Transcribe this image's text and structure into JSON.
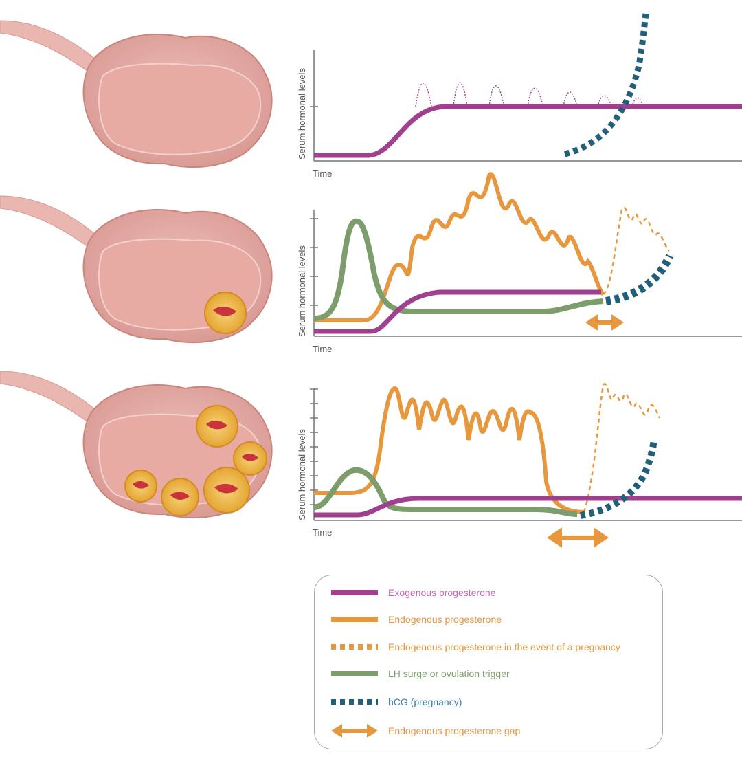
{
  "colors": {
    "exogenous": "#a0408f",
    "endogenous": "#e7983f",
    "lh": "#7d9e6c",
    "hcg": "#21607a",
    "gap": "#e7983f",
    "axis": "#777777",
    "ovary_fill": "#e9b3ad",
    "ovary_inner": "#e2a59f",
    "ovary_edge": "#c9857e",
    "follicle": "#f0b63c",
    "follicle_core": "#c9333b"
  },
  "panels": [
    {
      "ylabel": "Serum hormonal levels",
      "xlabel": "Time",
      "ovary_follicles": 0,
      "chart_data": {
        "type": "line",
        "series": [
          {
            "name": "Exogenous progesterone",
            "key": "exogenous"
          },
          {
            "name": "hCG (pregnancy)",
            "key": "hcg"
          }
        ]
      }
    },
    {
      "ylabel": "Serum hormonal levels",
      "xlabel": "Time",
      "ovary_follicles": 1,
      "chart_data": {
        "type": "line",
        "series": [
          {
            "name": "Exogenous progesterone",
            "key": "exogenous"
          },
          {
            "name": "Endogenous progesterone",
            "key": "endogenous"
          },
          {
            "name": "Endogenous progesterone in the event of a pregnancy",
            "key": "endogenous_pregnancy"
          },
          {
            "name": "LH surge or ovulation trigger",
            "key": "lh"
          },
          {
            "name": "hCG (pregnancy)",
            "key": "hcg"
          },
          {
            "name": "Endogenous progesterone gap",
            "key": "gap"
          }
        ]
      }
    },
    {
      "ylabel": "Serum hormonal levels",
      "xlabel": "Time",
      "ovary_follicles": 5,
      "chart_data": {
        "type": "line",
        "series": [
          {
            "name": "Exogenous progesterone",
            "key": "exogenous"
          },
          {
            "name": "Endogenous progesterone",
            "key": "endogenous"
          },
          {
            "name": "Endogenous progesterone in the event of a pregnancy",
            "key": "endogenous_pregnancy"
          },
          {
            "name": "LH surge or ovulation trigger",
            "key": "lh"
          },
          {
            "name": "hCG (pregnancy)",
            "key": "hcg"
          },
          {
            "name": "Endogenous progesterone gap",
            "key": "gap"
          }
        ]
      }
    }
  ],
  "legend": {
    "items": [
      {
        "label": "Exogenous progesterone",
        "style": "solid",
        "color": "#a0408f"
      },
      {
        "label": "Endogenous progesterone",
        "style": "solid",
        "color": "#e7983f"
      },
      {
        "label": "Endogenous progesterone in the event of a pregnancy",
        "style": "dashed",
        "color": "#e7983f"
      },
      {
        "label": "LH surge or ovulation trigger",
        "style": "solid",
        "color": "#7d9e6c"
      },
      {
        "label": "hCG (pregnancy)",
        "style": "dashed",
        "color": "#21607a"
      },
      {
        "label": "Endogenous progesterone gap",
        "style": "arrow",
        "color": "#e7983f"
      }
    ]
  }
}
